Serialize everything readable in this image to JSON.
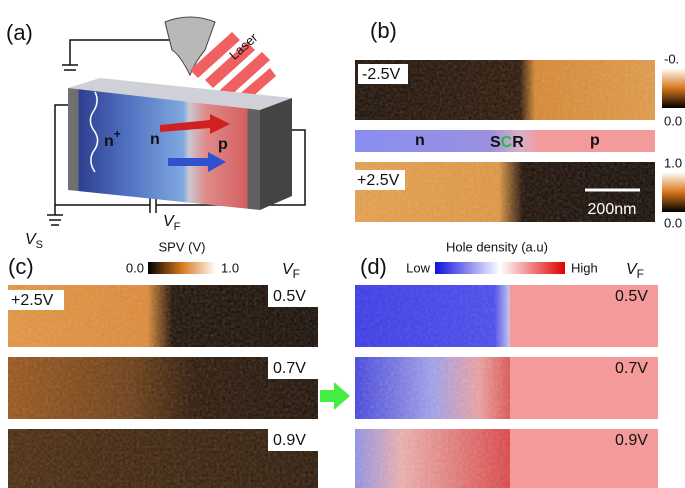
{
  "panel_a": {
    "label": "(a)",
    "laser": "Laser",
    "regions": {
      "n_plus": {
        "text": "n",
        "superscript": "+"
      },
      "n": "n",
      "p": "p"
    },
    "source_voltage": {
      "symbol": "V",
      "subscript": "S"
    },
    "feedback_voltage": {
      "symbol": "V",
      "subscript": "F"
    }
  },
  "panel_b": {
    "label": "(b)",
    "maps": [
      {
        "bias": "-2.5V",
        "colorbar": [
          "-0.",
          "0.0"
        ]
      },
      {
        "bias": "+2.5V",
        "colorbar": [
          "1.0",
          "0.0"
        ],
        "scale_bar": "200nm"
      }
    ],
    "band": [
      "n",
      "S",
      "C",
      "R",
      "p"
    ]
  },
  "panel_c": {
    "label": "(c)",
    "colorbar": {
      "title": "SPV (V)",
      "min": "0.0",
      "max": "1.0"
    },
    "column_header": {
      "symbol": "V",
      "subscript": "F"
    },
    "bias": "+2.5V",
    "rows": [
      "0.5V",
      "0.7V",
      "0.9V"
    ]
  },
  "panel_d": {
    "label": "(d)",
    "colorbar": {
      "title": "Hole density (a.u)",
      "min": "Low",
      "max": "High"
    },
    "column_header": {
      "symbol": "V",
      "subscript": "F"
    },
    "rows": [
      "0.5V",
      "0.7V",
      "0.9V"
    ]
  }
}
